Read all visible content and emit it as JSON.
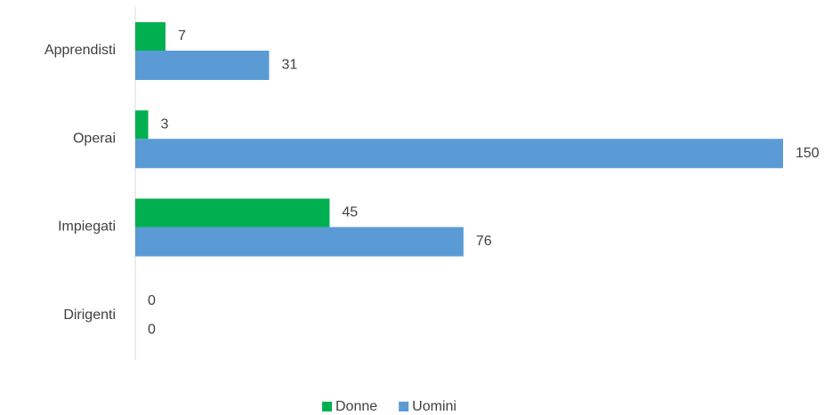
{
  "chart_data": {
    "type": "hbar",
    "categories": [
      "Apprendisti",
      "Operai",
      "Impiegati",
      "Dirigenti"
    ],
    "series": [
      {
        "name": "Donne",
        "color": "#00b050",
        "values": [
          7,
          3,
          45,
          0
        ]
      },
      {
        "name": "Uomini",
        "color": "#5b9bd5",
        "values": [
          31,
          150,
          76,
          0
        ]
      }
    ],
    "xlim": [
      0,
      150
    ],
    "legend": "bottom"
  }
}
